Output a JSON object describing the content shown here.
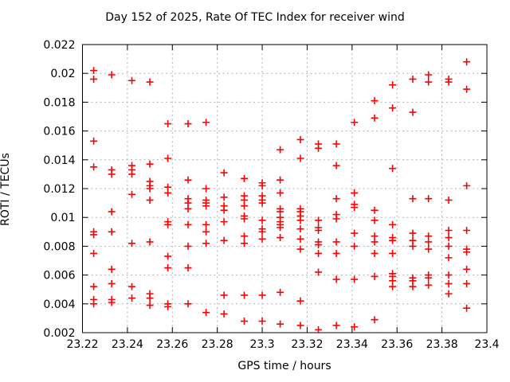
{
  "chart_data": {
    "type": "scatter",
    "title": "Day 152 of 2025, Rate Of TEC Index for receiver wind",
    "xlabel": "GPS time / hours",
    "ylabel": "ROTI / TECUs",
    "xlim": [
      23.22,
      23.4
    ],
    "ylim": [
      0.002,
      0.022
    ],
    "xticks": [
      23.22,
      23.24,
      23.26,
      23.28,
      23.3,
      23.32,
      23.34,
      23.36,
      23.38,
      23.4
    ],
    "xtick_labels": [
      "23.22",
      "23.24",
      "23.26",
      "23.28",
      "23.3",
      "23.32",
      "23.34",
      "23.36",
      "23.38",
      "23.4"
    ],
    "yticks": [
      0.002,
      0.004,
      0.006,
      0.008,
      0.01,
      0.012,
      0.014,
      0.016,
      0.018,
      0.02,
      0.022
    ],
    "ytick_labels": [
      "0.002",
      "0.004",
      "0.006",
      "0.008",
      "0.01",
      "0.012",
      "0.014",
      "0.016",
      "0.018",
      "0.02",
      "0.022"
    ],
    "grid": true,
    "legend": "none",
    "marker": "plus",
    "marker_color": "#ff0000",
    "axis_color": "#000000",
    "grid_color": "#b0b0b0",
    "points": [
      [
        23.225,
        0.0202
      ],
      [
        23.225,
        0.0196
      ],
      [
        23.225,
        0.0153
      ],
      [
        23.225,
        0.0135
      ],
      [
        23.225,
        0.009
      ],
      [
        23.225,
        0.0088
      ],
      [
        23.225,
        0.0075
      ],
      [
        23.225,
        0.0052
      ],
      [
        23.225,
        0.0043
      ],
      [
        23.225,
        0.004
      ],
      [
        23.233,
        0.0199
      ],
      [
        23.233,
        0.0133
      ],
      [
        23.233,
        0.013
      ],
      [
        23.233,
        0.0104
      ],
      [
        23.233,
        0.009
      ],
      [
        23.233,
        0.0064
      ],
      [
        23.233,
        0.0054
      ],
      [
        23.233,
        0.0043
      ],
      [
        23.233,
        0.0041
      ],
      [
        23.242,
        0.0195
      ],
      [
        23.242,
        0.0136
      ],
      [
        23.242,
        0.0133
      ],
      [
        23.242,
        0.013
      ],
      [
        23.242,
        0.0116
      ],
      [
        23.242,
        0.0082
      ],
      [
        23.242,
        0.0052
      ],
      [
        23.242,
        0.0044
      ],
      [
        23.25,
        0.0194
      ],
      [
        23.25,
        0.0137
      ],
      [
        23.25,
        0.0125
      ],
      [
        23.25,
        0.0122
      ],
      [
        23.25,
        0.012
      ],
      [
        23.25,
        0.0112
      ],
      [
        23.25,
        0.0083
      ],
      [
        23.25,
        0.0047
      ],
      [
        23.25,
        0.0044
      ],
      [
        23.25,
        0.0039
      ],
      [
        23.258,
        0.0165
      ],
      [
        23.258,
        0.0141
      ],
      [
        23.258,
        0.0121
      ],
      [
        23.258,
        0.0117
      ],
      [
        23.258,
        0.0097
      ],
      [
        23.258,
        0.0095
      ],
      [
        23.258,
        0.0073
      ],
      [
        23.258,
        0.0065
      ],
      [
        23.258,
        0.004
      ],
      [
        23.258,
        0.0038
      ],
      [
        23.267,
        0.0165
      ],
      [
        23.267,
        0.0126
      ],
      [
        23.267,
        0.0113
      ],
      [
        23.267,
        0.011
      ],
      [
        23.267,
        0.0106
      ],
      [
        23.267,
        0.0095
      ],
      [
        23.267,
        0.008
      ],
      [
        23.267,
        0.0065
      ],
      [
        23.267,
        0.004
      ],
      [
        23.275,
        0.0166
      ],
      [
        23.275,
        0.012
      ],
      [
        23.275,
        0.0112
      ],
      [
        23.275,
        0.011
      ],
      [
        23.275,
        0.0108
      ],
      [
        23.275,
        0.0095
      ],
      [
        23.275,
        0.009
      ],
      [
        23.275,
        0.0082
      ],
      [
        23.275,
        0.0034
      ],
      [
        23.283,
        0.0131
      ],
      [
        23.283,
        0.0114
      ],
      [
        23.283,
        0.0108
      ],
      [
        23.283,
        0.0105
      ],
      [
        23.283,
        0.0097
      ],
      [
        23.283,
        0.0084
      ],
      [
        23.283,
        0.0046
      ],
      [
        23.283,
        0.0033
      ],
      [
        23.292,
        0.0127
      ],
      [
        23.292,
        0.0115
      ],
      [
        23.292,
        0.0112
      ],
      [
        23.292,
        0.0108
      ],
      [
        23.292,
        0.0101
      ],
      [
        23.292,
        0.0099
      ],
      [
        23.292,
        0.0087
      ],
      [
        23.292,
        0.0082
      ],
      [
        23.292,
        0.0046
      ],
      [
        23.292,
        0.0028
      ],
      [
        23.3,
        0.0124
      ],
      [
        23.3,
        0.0122
      ],
      [
        23.3,
        0.0115
      ],
      [
        23.3,
        0.0112
      ],
      [
        23.3,
        0.011
      ],
      [
        23.3,
        0.0098
      ],
      [
        23.3,
        0.0092
      ],
      [
        23.3,
        0.009
      ],
      [
        23.3,
        0.0085
      ],
      [
        23.3,
        0.0046
      ],
      [
        23.3,
        0.0028
      ],
      [
        23.308,
        0.0147
      ],
      [
        23.308,
        0.0126
      ],
      [
        23.308,
        0.0117
      ],
      [
        23.308,
        0.0106
      ],
      [
        23.308,
        0.0104
      ],
      [
        23.308,
        0.01
      ],
      [
        23.308,
        0.0097
      ],
      [
        23.308,
        0.0095
      ],
      [
        23.308,
        0.0093
      ],
      [
        23.308,
        0.0086
      ],
      [
        23.308,
        0.0048
      ],
      [
        23.308,
        0.0026
      ],
      [
        23.317,
        0.0154
      ],
      [
        23.317,
        0.0141
      ],
      [
        23.317,
        0.0106
      ],
      [
        23.317,
        0.0104
      ],
      [
        23.317,
        0.0101
      ],
      [
        23.317,
        0.0098
      ],
      [
        23.317,
        0.0092
      ],
      [
        23.317,
        0.0085
      ],
      [
        23.317,
        0.0078
      ],
      [
        23.317,
        0.0042
      ],
      [
        23.317,
        0.0025
      ],
      [
        23.325,
        0.0151
      ],
      [
        23.325,
        0.0148
      ],
      [
        23.325,
        0.0098
      ],
      [
        23.325,
        0.0093
      ],
      [
        23.325,
        0.0091
      ],
      [
        23.325,
        0.0083
      ],
      [
        23.325,
        0.0081
      ],
      [
        23.325,
        0.0075
      ],
      [
        23.325,
        0.0062
      ],
      [
        23.325,
        0.0022
      ],
      [
        23.333,
        0.0151
      ],
      [
        23.333,
        0.0136
      ],
      [
        23.333,
        0.0113
      ],
      [
        23.333,
        0.0102
      ],
      [
        23.333,
        0.0099
      ],
      [
        23.333,
        0.0083
      ],
      [
        23.333,
        0.0075
      ],
      [
        23.333,
        0.0057
      ],
      [
        23.333,
        0.0025
      ],
      [
        23.341,
        0.0166
      ],
      [
        23.341,
        0.0117
      ],
      [
        23.341,
        0.0109
      ],
      [
        23.341,
        0.0107
      ],
      [
        23.341,
        0.0089
      ],
      [
        23.341,
        0.008
      ],
      [
        23.341,
        0.0057
      ],
      [
        23.341,
        0.0024
      ],
      [
        23.35,
        0.0181
      ],
      [
        23.35,
        0.0169
      ],
      [
        23.35,
        0.0105
      ],
      [
        23.35,
        0.0098
      ],
      [
        23.35,
        0.0087
      ],
      [
        23.35,
        0.0083
      ],
      [
        23.35,
        0.0075
      ],
      [
        23.35,
        0.0059
      ],
      [
        23.35,
        0.0029
      ],
      [
        23.358,
        0.0192
      ],
      [
        23.358,
        0.0176
      ],
      [
        23.358,
        0.0134
      ],
      [
        23.358,
        0.0095
      ],
      [
        23.358,
        0.0086
      ],
      [
        23.358,
        0.0084
      ],
      [
        23.358,
        0.0075
      ],
      [
        23.358,
        0.0061
      ],
      [
        23.358,
        0.0059
      ],
      [
        23.358,
        0.0056
      ],
      [
        23.358,
        0.0052
      ],
      [
        23.367,
        0.0196
      ],
      [
        23.367,
        0.0173
      ],
      [
        23.367,
        0.0113
      ],
      [
        23.367,
        0.0089
      ],
      [
        23.367,
        0.0084
      ],
      [
        23.367,
        0.008
      ],
      [
        23.367,
        0.0058
      ],
      [
        23.367,
        0.0056
      ],
      [
        23.367,
        0.0052
      ],
      [
        23.374,
        0.0199
      ],
      [
        23.374,
        0.0194
      ],
      [
        23.374,
        0.0113
      ],
      [
        23.374,
        0.0087
      ],
      [
        23.374,
        0.0083
      ],
      [
        23.374,
        0.0078
      ],
      [
        23.374,
        0.006
      ],
      [
        23.374,
        0.0058
      ],
      [
        23.374,
        0.0053
      ],
      [
        23.383,
        0.0196
      ],
      [
        23.383,
        0.0194
      ],
      [
        23.383,
        0.0112
      ],
      [
        23.383,
        0.0091
      ],
      [
        23.383,
        0.0086
      ],
      [
        23.383,
        0.008
      ],
      [
        23.383,
        0.0072
      ],
      [
        23.383,
        0.006
      ],
      [
        23.383,
        0.0054
      ],
      [
        23.383,
        0.0047
      ],
      [
        23.391,
        0.0208
      ],
      [
        23.391,
        0.0189
      ],
      [
        23.391,
        0.0122
      ],
      [
        23.391,
        0.0091
      ],
      [
        23.391,
        0.0078
      ],
      [
        23.391,
        0.0076
      ],
      [
        23.391,
        0.0064
      ],
      [
        23.391,
        0.0054
      ],
      [
        23.391,
        0.0037
      ]
    ]
  }
}
